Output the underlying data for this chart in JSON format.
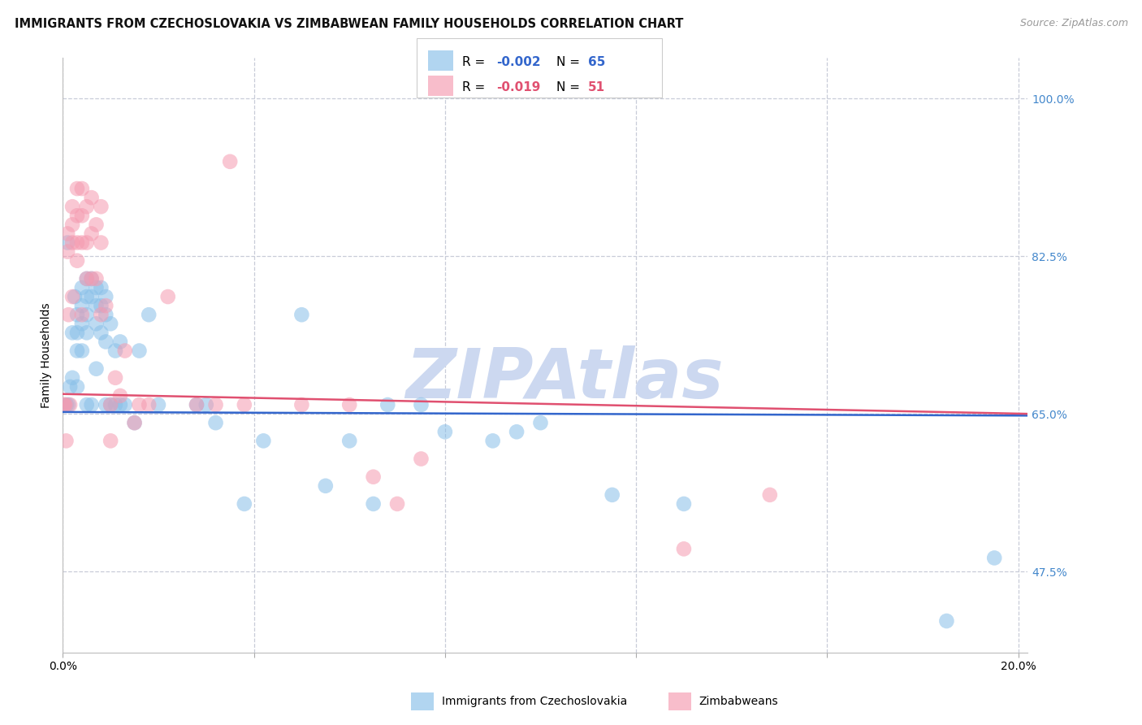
{
  "title": "IMMIGRANTS FROM CZECHOSLOVAKIA VS ZIMBABWEAN FAMILY HOUSEHOLDS CORRELATION CHART",
  "source": "Source: ZipAtlas.com",
  "ylabel": "Family Households",
  "xlim": [
    0.0,
    0.202
  ],
  "ylim": [
    0.385,
    1.045
  ],
  "yticks": [
    0.475,
    0.65,
    0.825,
    1.0
  ],
  "ytick_labels": [
    "47.5%",
    "65.0%",
    "82.5%",
    "100.0%"
  ],
  "xticks": [
    0.0,
    0.04,
    0.08,
    0.12,
    0.16,
    0.2
  ],
  "xtick_labels": [
    "0.0%",
    "",
    "",
    "",
    "",
    "20.0%"
  ],
  "blue_color": "#88bfe8",
  "pink_color": "#f59ab0",
  "blue_line_color": "#3366cc",
  "pink_line_color": "#e05070",
  "right_tick_color": "#4488cc",
  "background_color": "#ffffff",
  "watermark_text": "ZIPAtlas",
  "watermark_color": "#ccd8f0",
  "legend_label1": "Immigrants from Czechoslovakia",
  "legend_label2": "Zimbabweans",
  "blue_x": [
    0.0008,
    0.001,
    0.0012,
    0.0015,
    0.002,
    0.002,
    0.0025,
    0.003,
    0.003,
    0.003,
    0.003,
    0.004,
    0.004,
    0.004,
    0.004,
    0.005,
    0.005,
    0.005,
    0.005,
    0.005,
    0.006,
    0.006,
    0.006,
    0.007,
    0.007,
    0.007,
    0.007,
    0.008,
    0.008,
    0.008,
    0.009,
    0.009,
    0.009,
    0.009,
    0.01,
    0.01,
    0.011,
    0.011,
    0.012,
    0.012,
    0.013,
    0.015,
    0.016,
    0.018,
    0.02,
    0.028,
    0.03,
    0.032,
    0.038,
    0.042,
    0.05,
    0.055,
    0.06,
    0.065,
    0.068,
    0.075,
    0.08,
    0.09,
    0.095,
    0.1,
    0.115,
    0.13,
    0.185,
    0.195
  ],
  "blue_y": [
    0.66,
    0.84,
    0.66,
    0.68,
    0.74,
    0.69,
    0.78,
    0.76,
    0.74,
    0.72,
    0.68,
    0.79,
    0.77,
    0.75,
    0.72,
    0.8,
    0.78,
    0.76,
    0.74,
    0.66,
    0.8,
    0.78,
    0.66,
    0.79,
    0.77,
    0.75,
    0.7,
    0.79,
    0.77,
    0.74,
    0.78,
    0.76,
    0.73,
    0.66,
    0.75,
    0.66,
    0.72,
    0.66,
    0.73,
    0.66,
    0.66,
    0.64,
    0.72,
    0.76,
    0.66,
    0.66,
    0.66,
    0.64,
    0.55,
    0.62,
    0.76,
    0.57,
    0.62,
    0.55,
    0.66,
    0.66,
    0.63,
    0.62,
    0.63,
    0.64,
    0.56,
    0.55,
    0.42,
    0.49
  ],
  "pink_x": [
    0.0003,
    0.0005,
    0.0007,
    0.001,
    0.001,
    0.0012,
    0.0015,
    0.002,
    0.002,
    0.002,
    0.002,
    0.003,
    0.003,
    0.003,
    0.003,
    0.004,
    0.004,
    0.004,
    0.004,
    0.005,
    0.005,
    0.005,
    0.006,
    0.006,
    0.006,
    0.007,
    0.007,
    0.008,
    0.008,
    0.008,
    0.009,
    0.01,
    0.01,
    0.011,
    0.012,
    0.013,
    0.015,
    0.016,
    0.018,
    0.022,
    0.028,
    0.032,
    0.035,
    0.038,
    0.05,
    0.06,
    0.065,
    0.07,
    0.075,
    0.13,
    0.148
  ],
  "pink_y": [
    0.66,
    0.66,
    0.62,
    0.85,
    0.83,
    0.76,
    0.66,
    0.88,
    0.86,
    0.84,
    0.78,
    0.9,
    0.87,
    0.84,
    0.82,
    0.9,
    0.87,
    0.84,
    0.76,
    0.88,
    0.84,
    0.8,
    0.89,
    0.85,
    0.8,
    0.86,
    0.8,
    0.88,
    0.84,
    0.76,
    0.77,
    0.66,
    0.62,
    0.69,
    0.67,
    0.72,
    0.64,
    0.66,
    0.66,
    0.78,
    0.66,
    0.66,
    0.93,
    0.66,
    0.66,
    0.66,
    0.58,
    0.55,
    0.6,
    0.5,
    0.56
  ]
}
